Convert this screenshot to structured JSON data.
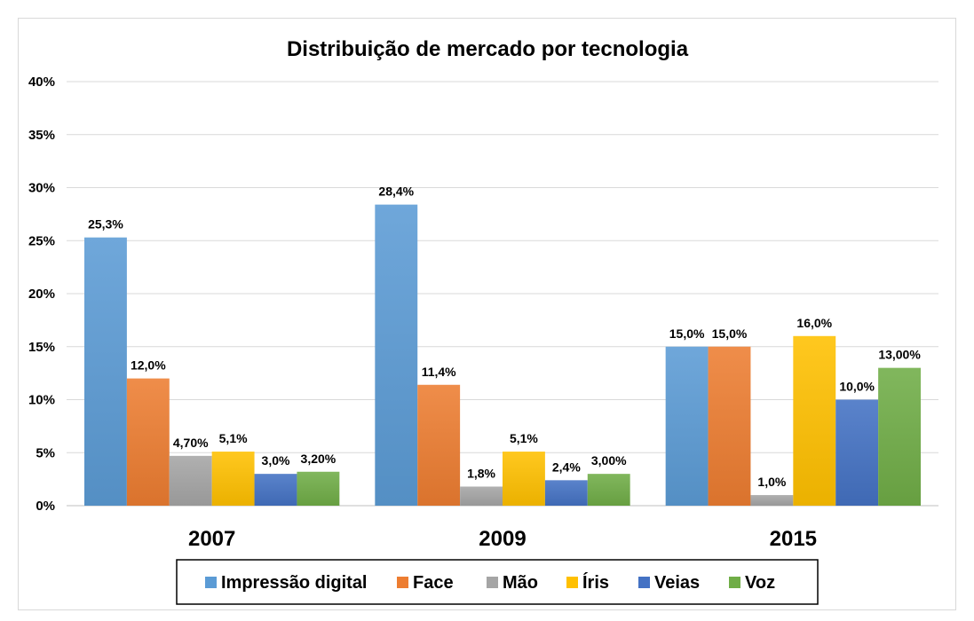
{
  "chart_data": {
    "type": "bar",
    "title": "Distribuição de mercado por tecnologia",
    "xlabel": "",
    "ylabel": "",
    "categories": [
      "2007",
      "2009",
      "2015"
    ],
    "ylim": [
      0,
      40
    ],
    "yticks": [
      "0%",
      "5%",
      "10%",
      "15%",
      "20%",
      "25%",
      "30%",
      "35%",
      "40%"
    ],
    "grid": true,
    "legend_position": "bottom",
    "series": [
      {
        "name": "Impressão digital",
        "color": "#5b9bd5",
        "values": [
          25.3,
          28.4,
          15.0
        ],
        "labels": [
          "25,3%",
          "28,4%",
          "15,0%"
        ]
      },
      {
        "name": "Face",
        "color": "#ed7d31",
        "values": [
          12.0,
          11.4,
          15.0
        ],
        "labels": [
          "12,0%",
          "11,4%",
          "15,0%"
        ]
      },
      {
        "name": "Mão",
        "color": "#a5a5a5",
        "values": [
          4.7,
          1.8,
          1.0
        ],
        "labels": [
          "4,70%",
          "1,8%",
          "1,0%"
        ]
      },
      {
        "name": "Íris",
        "color": "#ffc000",
        "values": [
          5.1,
          5.1,
          16.0
        ],
        "labels": [
          "5,1%",
          "5,1%",
          "16,0%"
        ]
      },
      {
        "name": "Veias",
        "color": "#4472c4",
        "values": [
          3.0,
          2.4,
          10.0
        ],
        "labels": [
          "3,0%",
          "2,4%",
          "10,0%"
        ]
      },
      {
        "name": "Voz",
        "color": "#70ad47",
        "values": [
          3.2,
          3.0,
          13.0
        ],
        "labels": [
          "3,20%",
          "3,00%",
          "13,00%"
        ]
      }
    ]
  }
}
